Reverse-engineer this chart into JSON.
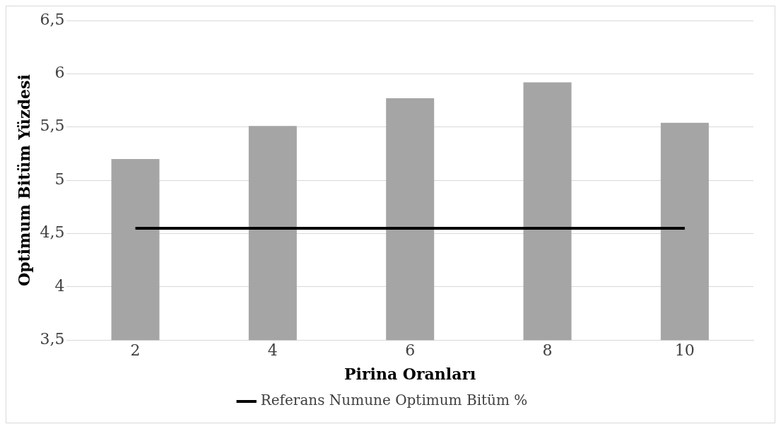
{
  "chart_data": {
    "type": "bar",
    "xlabel": "Pirina Oranları",
    "ylabel": "Optimum Bitüm Yüzdesi",
    "categories": [
      "2",
      "4",
      "6",
      "8",
      "10"
    ],
    "series": [
      {
        "color": "#a5a5a5",
        "values": [
          5.2,
          5.51,
          5.77,
          5.92,
          5.54
        ]
      },
      {
        "type": "line",
        "name": "Referans Numune Optimum Bitüm %",
        "color": "#000000",
        "values": [
          4.55,
          4.55,
          4.55,
          4.55,
          4.55
        ],
        "marker": "none"
      }
    ],
    "ylim": [
      3.5,
      6.5
    ],
    "yticks": [
      {
        "value": 3.5,
        "label": "3,5"
      },
      {
        "value": 4,
        "label": "4"
      },
      {
        "value": 4.5,
        "label": "4,5"
      },
      {
        "value": 5,
        "label": "5"
      },
      {
        "value": 5.5,
        "label": "5,5"
      },
      {
        "value": 6,
        "label": "6"
      },
      {
        "value": 6.5,
        "label": "6,5"
      }
    ],
    "grid": "y",
    "legend": "bottom"
  }
}
